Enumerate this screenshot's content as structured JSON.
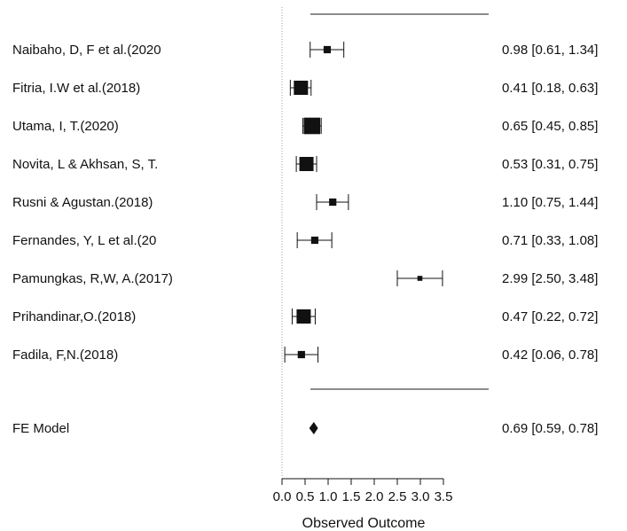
{
  "chart_data": {
    "type": "forest",
    "title": "",
    "xlabel": "Observed Outcome",
    "ylabel": "",
    "xlim": [
      0,
      3.5
    ],
    "x_ticks": [
      0.0,
      0.5,
      1.0,
      1.5,
      2.0,
      2.5,
      3.0,
      3.5
    ],
    "x_tick_labels": [
      "0.0",
      "0.5",
      "1.0",
      "1.5",
      "2.0",
      "2.5",
      "3.0",
      "3.5"
    ],
    "reference_line": 0,
    "studies": [
      {
        "label": "Naibaho, D, F et al.(2020",
        "estimate": 0.98,
        "ci_low": 0.61,
        "ci_high": 1.34,
        "text": "0.98 [0.61, 1.34]",
        "weight": 2
      },
      {
        "label": "Fitria, I.W et al.(2018)",
        "estimate": 0.41,
        "ci_low": 0.18,
        "ci_high": 0.63,
        "text": "0.41 [0.18, 0.63]",
        "weight": 5
      },
      {
        "label": "Utama, I, T.(2020)",
        "estimate": 0.65,
        "ci_low": 0.45,
        "ci_high": 0.85,
        "text": "0.65 [0.45, 0.85]",
        "weight": 6
      },
      {
        "label": "Novita, L & Akhsan, S, T.",
        "estimate": 0.53,
        "ci_low": 0.31,
        "ci_high": 0.75,
        "text": "0.53 [0.31, 0.75]",
        "weight": 5
      },
      {
        "label": "Rusni & Agustan.(2018)",
        "estimate": 1.1,
        "ci_low": 0.75,
        "ci_high": 1.44,
        "text": "1.10 [0.75, 1.44]",
        "weight": 2
      },
      {
        "label": "Fernandes, Y, L et al.(20",
        "estimate": 0.71,
        "ci_low": 0.33,
        "ci_high": 1.08,
        "text": "0.71 [0.33, 1.08]",
        "weight": 2
      },
      {
        "label": "Pamungkas, R,W, A.(2017)",
        "estimate": 2.99,
        "ci_low": 2.5,
        "ci_high": 3.48,
        "text": "2.99 [2.50, 3.48]",
        "weight": 1
      },
      {
        "label": "Prihandinar,O.(2018)",
        "estimate": 0.47,
        "ci_low": 0.22,
        "ci_high": 0.72,
        "text": "0.47 [0.22, 0.72]",
        "weight": 5
      },
      {
        "label": "Fadila, F,N.(2018)",
        "estimate": 0.42,
        "ci_low": 0.06,
        "ci_high": 0.78,
        "text": "0.42 [0.06, 0.78]",
        "weight": 2
      }
    ],
    "summary": {
      "label": "FE Model",
      "estimate": 0.69,
      "ci_low": 0.59,
      "ci_high": 0.78,
      "text": "0.69 [0.59, 0.78]"
    },
    "colors": {
      "ink": "#111111",
      "divider": "#8c8c8c",
      "reference": "#a0a0a0"
    }
  }
}
